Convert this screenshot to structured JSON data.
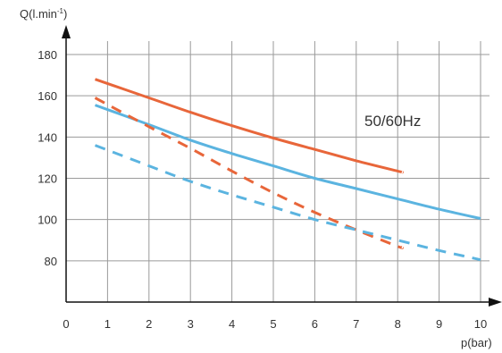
{
  "chart_data": {
    "type": "line",
    "title": "",
    "xlabel": "p(bar)",
    "ylabel": "Q(l.min-1)",
    "ylabel_main": "Q(l.min",
    "ylabel_sup": "-1",
    "ylabel_close": ")",
    "xlim": [
      0,
      10
    ],
    "ylim": [
      60,
      180
    ],
    "x_ticks": [
      "0",
      "1",
      "2",
      "3",
      "4",
      "5",
      "6",
      "7",
      "8",
      "9",
      "10"
    ],
    "y_ticks": [
      "80",
      "100",
      "120",
      "140",
      "160",
      "180"
    ],
    "grid": true,
    "annotation": "50/60Hz",
    "series": [
      {
        "color": "#E8663A",
        "dash": "solid",
        "points": [
          [
            0.7,
            168
          ],
          [
            2,
            159
          ],
          [
            3,
            152
          ],
          [
            4,
            145.5
          ],
          [
            5,
            139.5
          ],
          [
            6,
            134
          ],
          [
            7,
            128.5
          ],
          [
            8,
            123.5
          ],
          [
            8.1,
            123
          ]
        ]
      },
      {
        "color": "#5BB4E0",
        "dash": "solid",
        "points": [
          [
            0.7,
            155.5
          ],
          [
            2,
            146
          ],
          [
            3,
            138.5
          ],
          [
            4,
            132
          ],
          [
            5,
            126
          ],
          [
            6,
            120
          ],
          [
            7,
            115
          ],
          [
            8,
            110
          ],
          [
            9,
            105
          ],
          [
            10,
            100.5
          ]
        ]
      },
      {
        "color": "#E8663A",
        "dash": "dashed",
        "points": [
          [
            0.7,
            159
          ],
          [
            2,
            145
          ],
          [
            3,
            134.5
          ],
          [
            4,
            123.5
          ],
          [
            5,
            113
          ],
          [
            6,
            103.5
          ],
          [
            7,
            95
          ],
          [
            8,
            87
          ],
          [
            8.1,
            86.5
          ]
        ]
      },
      {
        "color": "#5BB4E0",
        "dash": "dashed",
        "points": [
          [
            0.7,
            136
          ],
          [
            2,
            126
          ],
          [
            3,
            118.5
          ],
          [
            4,
            112
          ],
          [
            5,
            106
          ],
          [
            6,
            100
          ],
          [
            7,
            95
          ],
          [
            8,
            90
          ],
          [
            9,
            85
          ],
          [
            10,
            80.5
          ]
        ]
      }
    ]
  }
}
